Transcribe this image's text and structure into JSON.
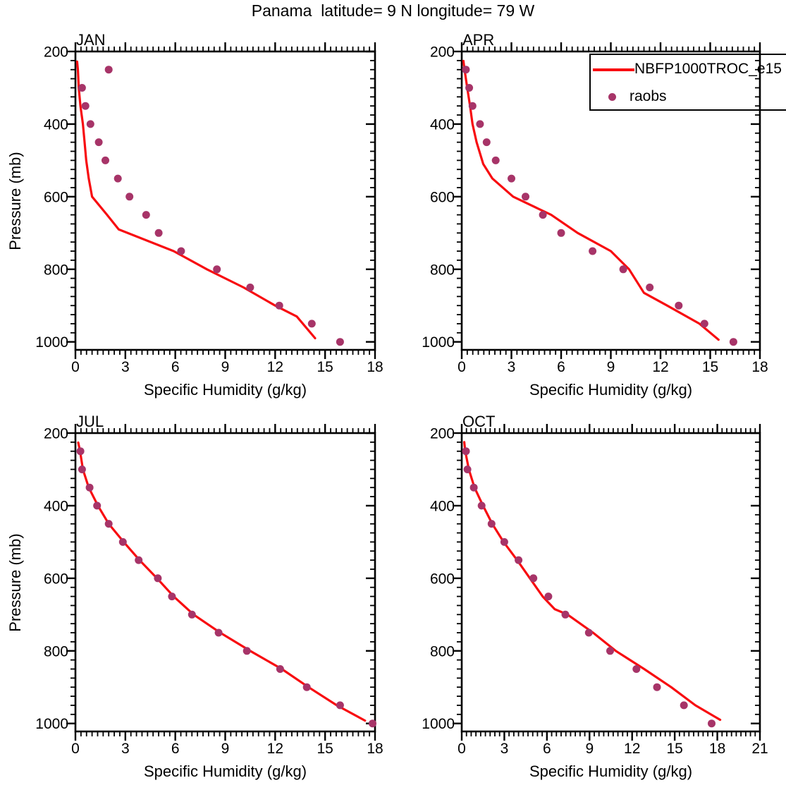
{
  "page": {
    "title": "Panama  latitude= 9 N longitude= 79 W"
  },
  "legend": {
    "model_label": "NBFP1000TROC_e15",
    "obs_label": "raobs"
  },
  "colors": {
    "model_line": "#F80C10",
    "raobs_dot": "#A73468",
    "axis": "#000000",
    "background": "#FFFFFF"
  },
  "axes": {
    "x_label": "Specific Humidity (g/kg)",
    "y_label": "Pressure (mb)",
    "y_ticks": [
      200,
      400,
      600,
      800,
      1000
    ],
    "y_range": [
      200,
      1022
    ],
    "y_minor_step": 25,
    "x_minors_per_major": 9
  },
  "chart_data": {
    "type": "line",
    "title": "Panama  latitude= 9 N longitude= 79 W",
    "xlabel": "Specific Humidity (g/kg)",
    "ylabel": "Pressure (mb)",
    "legend_position": "top-right of APR panel",
    "series_names": [
      "NBFP1000TROC_e15",
      "raobs"
    ],
    "panels": [
      {
        "title": "JAN",
        "x_max": 18,
        "x_ticks": [
          0,
          3,
          6,
          9,
          12,
          15,
          18
        ],
        "raobs": {
          "pressure_mb": [
            250,
            300,
            350,
            400,
            450,
            500,
            550,
            600,
            650,
            700,
            750,
            800,
            850,
            900,
            950,
            1000
          ],
          "q_g_per_kg": [
            2.0,
            0.4,
            0.6,
            0.9,
            1.4,
            1.8,
            2.55,
            3.25,
            4.25,
            5.0,
            6.35,
            8.5,
            10.5,
            12.25,
            14.2,
            15.9
          ]
        },
        "model": {
          "pressure_mb": [
            228,
            250,
            300,
            350,
            400,
            450,
            500,
            550,
            600,
            650,
            690,
            750,
            800,
            850,
            900,
            930,
            990
          ],
          "q_g_per_kg": [
            0.1,
            0.15,
            0.2,
            0.3,
            0.45,
            0.55,
            0.65,
            0.8,
            1.0,
            1.9,
            2.6,
            5.9,
            7.9,
            10.1,
            12.0,
            13.3,
            14.4
          ]
        }
      },
      {
        "title": "APR",
        "x_max": 18,
        "x_ticks": [
          0,
          3,
          6,
          9,
          12,
          15,
          18
        ],
        "raobs": {
          "pressure_mb": [
            250,
            300,
            350,
            400,
            450,
            500,
            550,
            600,
            650,
            700,
            750,
            800,
            850,
            900,
            950,
            1000
          ],
          "q_g_per_kg": [
            0.25,
            0.45,
            0.65,
            1.1,
            1.5,
            2.05,
            3.0,
            3.85,
            4.9,
            6.0,
            7.9,
            9.75,
            11.35,
            13.1,
            14.65,
            16.4
          ]
        },
        "model": {
          "pressure_mb": [
            226,
            250,
            300,
            350,
            400,
            450,
            510,
            550,
            600,
            650,
            700,
            750,
            800,
            865,
            900,
            950,
            994
          ],
          "q_g_per_kg": [
            0.1,
            0.17,
            0.33,
            0.5,
            0.65,
            0.9,
            1.3,
            1.85,
            3.1,
            5.4,
            7.0,
            9.0,
            10.1,
            11.0,
            12.4,
            14.35,
            15.5
          ]
        }
      },
      {
        "title": "JUL",
        "x_max": 18,
        "x_ticks": [
          0,
          3,
          6,
          9,
          12,
          15,
          18
        ],
        "raobs": {
          "pressure_mb": [
            250,
            300,
            350,
            400,
            450,
            500,
            550,
            600,
            650,
            700,
            750,
            800,
            850,
            900,
            950,
            1000
          ],
          "q_g_per_kg": [
            0.3,
            0.4,
            0.85,
            1.3,
            2.0,
            2.85,
            3.8,
            4.95,
            5.8,
            7.0,
            8.6,
            10.3,
            12.3,
            13.9,
            15.9,
            17.85
          ]
        },
        "model": {
          "pressure_mb": [
            226,
            250,
            300,
            350,
            400,
            450,
            500,
            550,
            600,
            650,
            700,
            750,
            800,
            850,
            900,
            950,
            992
          ],
          "q_g_per_kg": [
            0.17,
            0.28,
            0.45,
            0.8,
            1.35,
            2.0,
            2.9,
            3.85,
            4.9,
            5.9,
            7.1,
            8.7,
            10.5,
            12.4,
            14.0,
            15.7,
            17.4
          ]
        }
      },
      {
        "title": "OCT",
        "x_max": 21,
        "x_ticks": [
          0,
          3,
          6,
          9,
          12,
          15,
          18,
          21
        ],
        "raobs": {
          "pressure_mb": [
            250,
            300,
            350,
            400,
            450,
            500,
            550,
            600,
            650,
            700,
            750,
            800,
            850,
            900,
            950,
            1000
          ],
          "q_g_per_kg": [
            0.3,
            0.4,
            0.85,
            1.4,
            2.1,
            3.0,
            4.0,
            5.05,
            6.1,
            7.3,
            8.95,
            10.45,
            12.3,
            13.75,
            15.65,
            17.6
          ]
        },
        "model": {
          "pressure_mb": [
            225,
            250,
            300,
            350,
            400,
            450,
            500,
            550,
            600,
            650,
            685,
            700,
            750,
            800,
            850,
            900,
            950,
            990
          ],
          "q_g_per_kg": [
            0.18,
            0.25,
            0.5,
            0.9,
            1.5,
            2.15,
            2.95,
            3.9,
            4.8,
            5.7,
            6.55,
            7.45,
            9.25,
            10.85,
            12.85,
            14.75,
            16.45,
            18.2
          ]
        }
      }
    ]
  }
}
